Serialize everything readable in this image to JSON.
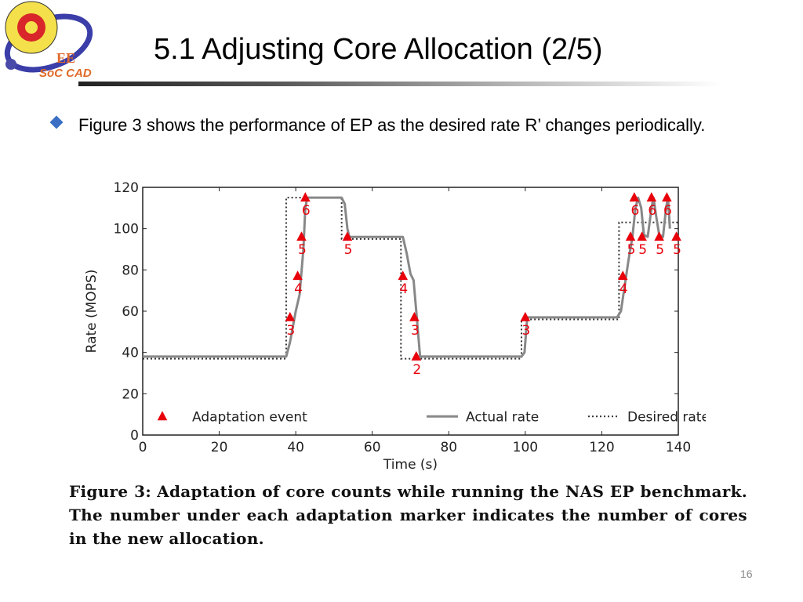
{
  "slide": {
    "title": "5.1 Adjusting Core Allocation (2/5)",
    "bullet": "Figure 3 shows the performance of EP as the desired rate R’ changes periodically.",
    "caption_label": "Figure 3:",
    "caption_text": "Adaptation of core counts while running the NAS EP benchmark. The number under each adaptation marker indicates the number of cores in the new allocation.",
    "page_number": "16",
    "logo_text": "EE SoC CAD",
    "accent": "#3a6fc4"
  },
  "chart_data": {
    "type": "line",
    "xlabel": "Time (s)",
    "ylabel": "Rate (MOPS)",
    "xlim": [
      0,
      140
    ],
    "ylim": [
      0,
      120
    ],
    "xticks": [
      0,
      20,
      40,
      60,
      80,
      100,
      120,
      140
    ],
    "yticks": [
      0,
      20,
      40,
      60,
      80,
      100,
      120
    ],
    "legend": {
      "placement": "bottom",
      "entries": [
        "Adaptation event",
        "Actual rate",
        "Desired rate"
      ]
    },
    "series": [
      {
        "name": "Actual rate",
        "points": [
          [
            0,
            38
          ],
          [
            37.5,
            38
          ],
          [
            38.5,
            45
          ],
          [
            40,
            60
          ],
          [
            41,
            68
          ],
          [
            42,
            90
          ],
          [
            42.5,
            110
          ],
          [
            43,
            115
          ],
          [
            52,
            115
          ],
          [
            52.8,
            112
          ],
          [
            53.5,
            100
          ],
          [
            54,
            96
          ],
          [
            68,
            96
          ],
          [
            69,
            88
          ],
          [
            70,
            78
          ],
          [
            70.8,
            75
          ],
          [
            71.5,
            60
          ],
          [
            72.5,
            38
          ],
          [
            99,
            38
          ],
          [
            99.8,
            40
          ],
          [
            100.5,
            57
          ],
          [
            124,
            57
          ],
          [
            125,
            60
          ],
          [
            127,
            85
          ],
          [
            128,
            96
          ],
          [
            128.8,
            110
          ],
          [
            129.5,
            115
          ],
          [
            130.3,
            110
          ],
          [
            131,
            97
          ],
          [
            132,
            96
          ],
          [
            133,
            110
          ],
          [
            133.5,
            115
          ],
          [
            134.3,
            105
          ],
          [
            135,
            97
          ],
          [
            136,
            96
          ],
          [
            136.8,
            110
          ],
          [
            137.3,
            115
          ],
          [
            137.8,
            100
          ]
        ]
      },
      {
        "name": "Desired rate",
        "points": [
          [
            0,
            37
          ],
          [
            37.5,
            37
          ],
          [
            37.5,
            115
          ],
          [
            52,
            115
          ],
          [
            52,
            95
          ],
          [
            67.5,
            95
          ],
          [
            67.5,
            37
          ],
          [
            99,
            37
          ],
          [
            99,
            56
          ],
          [
            124.5,
            56
          ],
          [
            124.5,
            103
          ],
          [
            140,
            103
          ]
        ]
      }
    ],
    "events": [
      [
        38.5,
        57,
        "3"
      ],
      [
        40.5,
        77,
        "4"
      ],
      [
        41.5,
        96,
        "5"
      ],
      [
        42.5,
        115,
        "6"
      ],
      [
        53.5,
        96,
        "5"
      ],
      [
        68,
        77,
        "4"
      ],
      [
        71,
        57,
        "3"
      ],
      [
        71.5,
        38,
        "2"
      ],
      [
        100,
        57,
        "3"
      ],
      [
        125.5,
        77,
        "4"
      ],
      [
        127.5,
        96,
        "5"
      ],
      [
        128.5,
        115,
        "6"
      ],
      [
        130.5,
        96,
        "5"
      ],
      [
        133,
        115,
        "6"
      ],
      [
        135,
        96,
        "5"
      ],
      [
        137,
        115,
        "6"
      ],
      [
        139.5,
        96,
        "5"
      ]
    ]
  }
}
